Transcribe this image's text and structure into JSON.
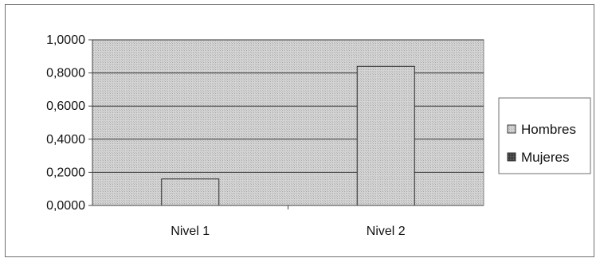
{
  "chart_data": {
    "type": "bar",
    "categories": [
      "Nivel 1",
      "Nivel 2"
    ],
    "series": [
      {
        "name": "Hombres",
        "values": [
          0.16,
          0.84
        ],
        "color": "#9a9a9a"
      },
      {
        "name": "Mujeres",
        "values": [
          null,
          null
        ],
        "color": "#4a4a4a"
      }
    ],
    "ylim": [
      0,
      1
    ],
    "yticks": [
      "0,0000",
      "0,2000",
      "0,4000",
      "0,6000",
      "0,8000",
      "1,0000"
    ],
    "ytick_values": [
      0,
      0.2,
      0.4,
      0.6,
      0.8,
      1.0
    ],
    "grid": true,
    "legend": "right",
    "plot_background": "#c8c8c8"
  }
}
